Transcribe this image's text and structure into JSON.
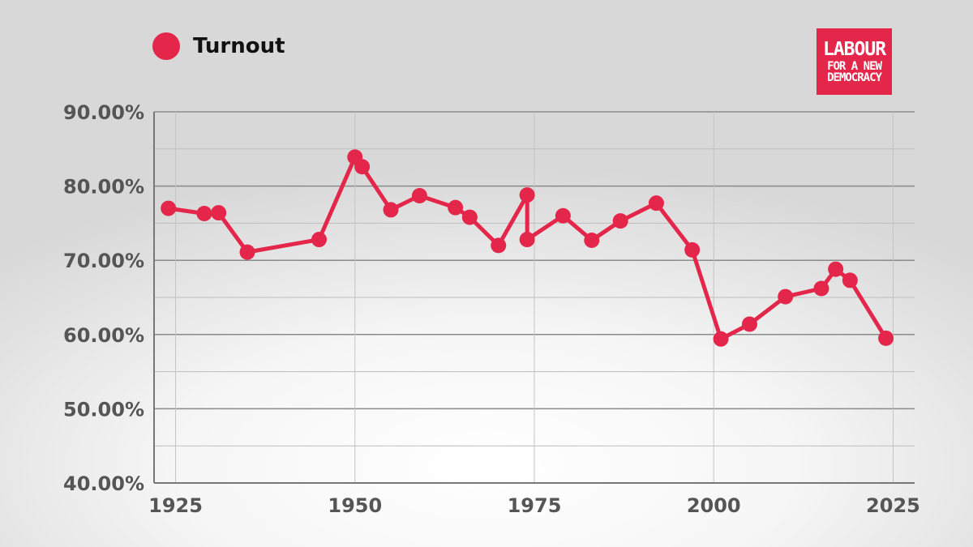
{
  "legend": {
    "label": "Turnout",
    "color": "#e3264a"
  },
  "logo": {
    "line1": "LABOUR",
    "line2": "FOR A NEW",
    "line3": "DEMOCRACY"
  },
  "chart_data": {
    "type": "line",
    "title": "",
    "xlabel": "",
    "ylabel": "",
    "xlim": [
      1922,
      2028
    ],
    "ylim": [
      40,
      90
    ],
    "x_ticks": [
      1925,
      1950,
      1975,
      2000,
      2025
    ],
    "x_tick_labels": [
      "1925",
      "1950",
      "1975",
      "2000",
      "2025"
    ],
    "y_ticks": [
      40,
      50,
      60,
      70,
      80,
      90
    ],
    "y_tick_labels": [
      "40.00%",
      "50.00%",
      "60.00%",
      "70.00%",
      "80.00%",
      "90.00%"
    ],
    "grid": true,
    "legend_position": "top-left",
    "series": [
      {
        "name": "Turnout",
        "color": "#e3264a",
        "x": [
          1924,
          1929,
          1931,
          1935,
          1945,
          1950,
          1951,
          1955,
          1959,
          1964,
          1966,
          1970,
          1974,
          1974,
          1979,
          1983,
          1987,
          1992,
          1997,
          2001,
          2005,
          2010,
          2015,
          2017,
          2019,
          2024
        ],
        "y": [
          77.0,
          76.3,
          76.4,
          71.1,
          72.8,
          83.9,
          82.6,
          76.8,
          78.7,
          77.1,
          75.8,
          72.0,
          78.8,
          72.8,
          76.0,
          72.7,
          75.3,
          77.7,
          71.4,
          59.4,
          61.4,
          65.1,
          66.2,
          68.8,
          67.3,
          59.5
        ]
      }
    ]
  }
}
